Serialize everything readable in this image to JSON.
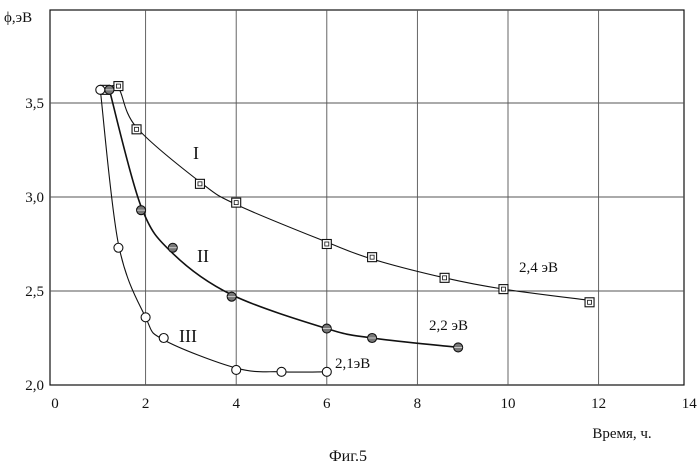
{
  "chart_data": {
    "type": "scatter",
    "title": "",
    "xlabel": "Время, ч.",
    "ylabel": "ϕ,эВ",
    "xlim": [
      0,
      14
    ],
    "ylim": [
      2.0,
      3.7
    ],
    "x_ticks": [
      0,
      2,
      4,
      6,
      8,
      10,
      12,
      14
    ],
    "y_ticks": [
      "2,0",
      "2,5",
      "3,0",
      "3,5"
    ],
    "y_tick_values": [
      2.0,
      2.5,
      3.0,
      3.5
    ],
    "grid": true,
    "series": [
      {
        "name": "I",
        "annotation": "2,4 эВ",
        "marker": "square",
        "x": [
          1.1,
          1.4,
          1.8,
          3.2,
          4.0,
          6.0,
          7.0,
          8.6,
          9.9,
          11.8
        ],
        "y": [
          3.57,
          3.59,
          3.36,
          3.07,
          2.97,
          2.75,
          2.68,
          2.57,
          2.51,
          2.44
        ],
        "curve_x": [
          1.1,
          1.4,
          1.8,
          3.2,
          4.0,
          6.0,
          7.0,
          8.6,
          9.9,
          11.8
        ],
        "curve_y": [
          3.57,
          3.58,
          3.37,
          3.08,
          2.96,
          2.76,
          2.67,
          2.57,
          2.51,
          2.45
        ]
      },
      {
        "name": "II",
        "annotation": "2,2 эВ",
        "marker": "filled-circle",
        "x": [
          1.2,
          1.9,
          2.6,
          3.9,
          6.0,
          7.0,
          8.9
        ],
        "y": [
          3.57,
          2.93,
          2.73,
          2.47,
          2.3,
          2.25,
          2.2
        ],
        "curve_x": [
          1.2,
          1.9,
          2.6,
          3.9,
          6.0,
          7.0,
          8.9
        ],
        "curve_y": [
          3.57,
          2.95,
          2.7,
          2.48,
          2.3,
          2.25,
          2.2
        ]
      },
      {
        "name": "III",
        "annotation": "2,1эВ",
        "marker": "open-circle",
        "x": [
          1.0,
          1.4,
          2.0,
          2.4,
          4.0,
          5.0,
          6.0
        ],
        "y": [
          3.57,
          2.73,
          2.36,
          2.25,
          2.08,
          2.07,
          2.07
        ],
        "curve_x": [
          1.0,
          1.4,
          2.0,
          2.4,
          4.0,
          5.0,
          6.0
        ],
        "curve_y": [
          3.57,
          2.75,
          2.36,
          2.24,
          2.09,
          2.07,
          2.07
        ]
      }
    ]
  },
  "caption": "Фиг.5",
  "colors": {
    "ink": "#111111",
    "grid": "#555555",
    "marker_fill": "#ffffff"
  }
}
